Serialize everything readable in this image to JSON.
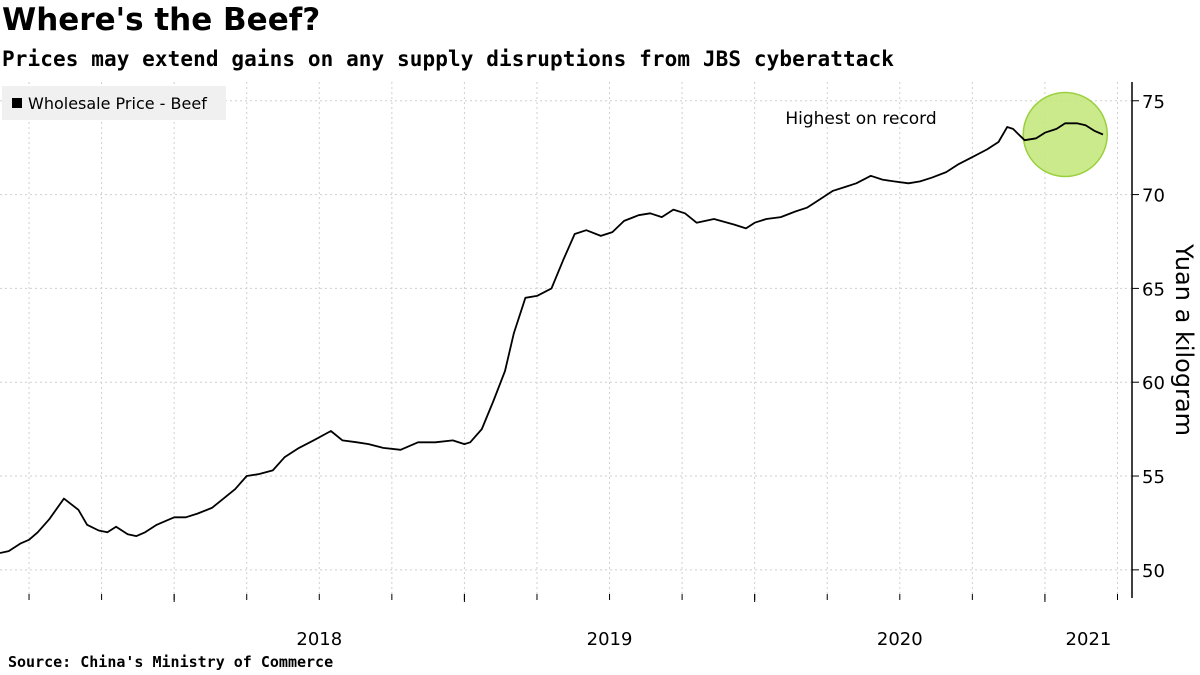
{
  "header": {
    "title": "Where's the Beef?",
    "subtitle": "Prices may extend gains on any supply disruptions from JBS cyberattack"
  },
  "footer": {
    "source": "Source: China's Ministry of Commerce"
  },
  "colors": {
    "line": "#000000",
    "highlight_fill": "#c6e87f",
    "highlight_stroke": "#8fcc2a",
    "legend_bg": "#f0f0f0",
    "grid": "#cfcfcf"
  },
  "chart_data": {
    "type": "line",
    "title": "Where's the Beef?",
    "subtitle": "Prices may extend gains on any supply disruptions from JBS cyberattack",
    "ylabel": "Yuan a kilogram",
    "xlabel": "",
    "ylim": [
      48.5,
      76
    ],
    "xlim": [
      2017.4,
      2021.3
    ],
    "yticks": [
      50,
      55,
      60,
      65,
      70,
      75
    ],
    "xticks": [
      {
        "value": 2018.0,
        "label": "2018"
      },
      {
        "value": 2019.0,
        "label": "2019"
      },
      {
        "value": 2020.0,
        "label": "2020"
      },
      {
        "value": 2021.0,
        "label": "2021"
      }
    ],
    "legend": {
      "position": "top-left",
      "entries": [
        "Wholesale Price - Beef"
      ]
    },
    "grid": true,
    "annotation": {
      "text": "Highest on record",
      "x": 2021.07,
      "y": 73.2
    },
    "series": [
      {
        "name": "Wholesale Price - Beef",
        "x": [
          2017.4,
          2017.43,
          2017.47,
          2017.5,
          2017.53,
          2017.57,
          2017.62,
          2017.67,
          2017.7,
          2017.74,
          2017.77,
          2017.8,
          2017.84,
          2017.87,
          2017.9,
          2017.94,
          2017.97,
          2018.0,
          2018.04,
          2018.08,
          2018.13,
          2018.17,
          2018.21,
          2018.25,
          2018.29,
          2018.34,
          2018.38,
          2018.43,
          2018.48,
          2018.54,
          2018.58,
          2018.63,
          2018.67,
          2018.72,
          2018.78,
          2018.84,
          2018.9,
          2018.96,
          2019.0,
          2019.02,
          2019.06,
          2019.1,
          2019.14,
          2019.17,
          2019.21,
          2019.25,
          2019.3,
          2019.34,
          2019.38,
          2019.42,
          2019.47,
          2019.51,
          2019.55,
          2019.6,
          2019.64,
          2019.68,
          2019.72,
          2019.76,
          2019.8,
          2019.86,
          2019.93,
          2019.97,
          2020.0,
          2020.04,
          2020.09,
          2020.14,
          2020.18,
          2020.22,
          2020.27,
          2020.31,
          2020.35,
          2020.4,
          2020.44,
          2020.48,
          2020.53,
          2020.57,
          2020.61,
          2020.66,
          2020.7,
          2020.75,
          2020.8,
          2020.84,
          2020.87,
          2020.89,
          2020.93,
          2020.97,
          2021.0,
          2021.04,
          2021.07,
          2021.11,
          2021.14,
          2021.17,
          2021.2
        ],
        "values": [
          50.9,
          51.0,
          51.4,
          51.6,
          52.0,
          52.7,
          53.8,
          53.2,
          52.4,
          52.1,
          52.0,
          52.3,
          51.9,
          51.8,
          52.0,
          52.4,
          52.6,
          52.8,
          52.8,
          53.0,
          53.3,
          53.8,
          54.3,
          55.0,
          55.1,
          55.3,
          56.0,
          56.5,
          56.9,
          57.4,
          56.9,
          56.8,
          56.7,
          56.5,
          56.4,
          56.8,
          56.8,
          56.9,
          56.7,
          56.8,
          57.5,
          59.0,
          60.6,
          62.6,
          64.5,
          64.6,
          65.0,
          66.5,
          67.9,
          68.1,
          67.8,
          68.0,
          68.6,
          68.9,
          69.0,
          68.8,
          69.2,
          69.0,
          68.5,
          68.7,
          68.4,
          68.2,
          68.5,
          68.7,
          68.8,
          69.1,
          69.3,
          69.7,
          70.2,
          70.4,
          70.6,
          71.0,
          70.8,
          70.7,
          70.6,
          70.7,
          70.9,
          71.2,
          71.6,
          72.0,
          72.4,
          72.8,
          73.6,
          73.5,
          72.9,
          73.0,
          73.3,
          73.5,
          73.8,
          73.8,
          73.7,
          73.4,
          73.2
        ]
      }
    ]
  }
}
